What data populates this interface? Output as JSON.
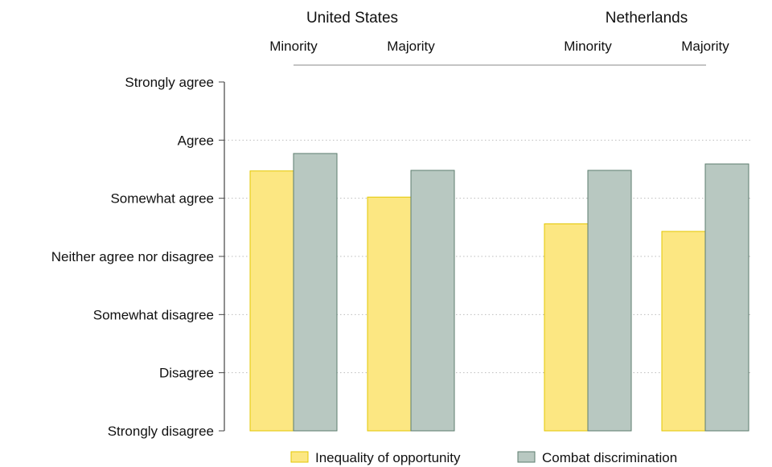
{
  "chart_data": {
    "type": "bar",
    "y_categories": [
      "Strongly disagree",
      "Disagree",
      "Somewhat disagree",
      "Neither agree nor disagree",
      "Somewhat agree",
      "Agree",
      "Strongly agree"
    ],
    "ylim": [
      1,
      7
    ],
    "grid": true,
    "groups": [
      {
        "name": "United States",
        "subgroups": [
          {
            "name": "Minority",
            "values": [
              5.47,
              5.77
            ]
          },
          {
            "name": "Majority",
            "values": [
              5.02,
              5.48
            ]
          }
        ]
      },
      {
        "name": "Netherlands",
        "subgroups": [
          {
            "name": "Minority",
            "values": [
              4.56,
              5.48
            ]
          },
          {
            "name": "Majority",
            "values": [
              4.43,
              5.59
            ]
          }
        ]
      }
    ],
    "series": [
      {
        "name": "Inequality of opportunity",
        "color": "#fce782",
        "stroke": "#e3c700"
      },
      {
        "name": "Combat discrimination",
        "color": "#b8c8c1",
        "stroke": "#5c7d6e"
      }
    ],
    "legend_position": "bottom"
  }
}
